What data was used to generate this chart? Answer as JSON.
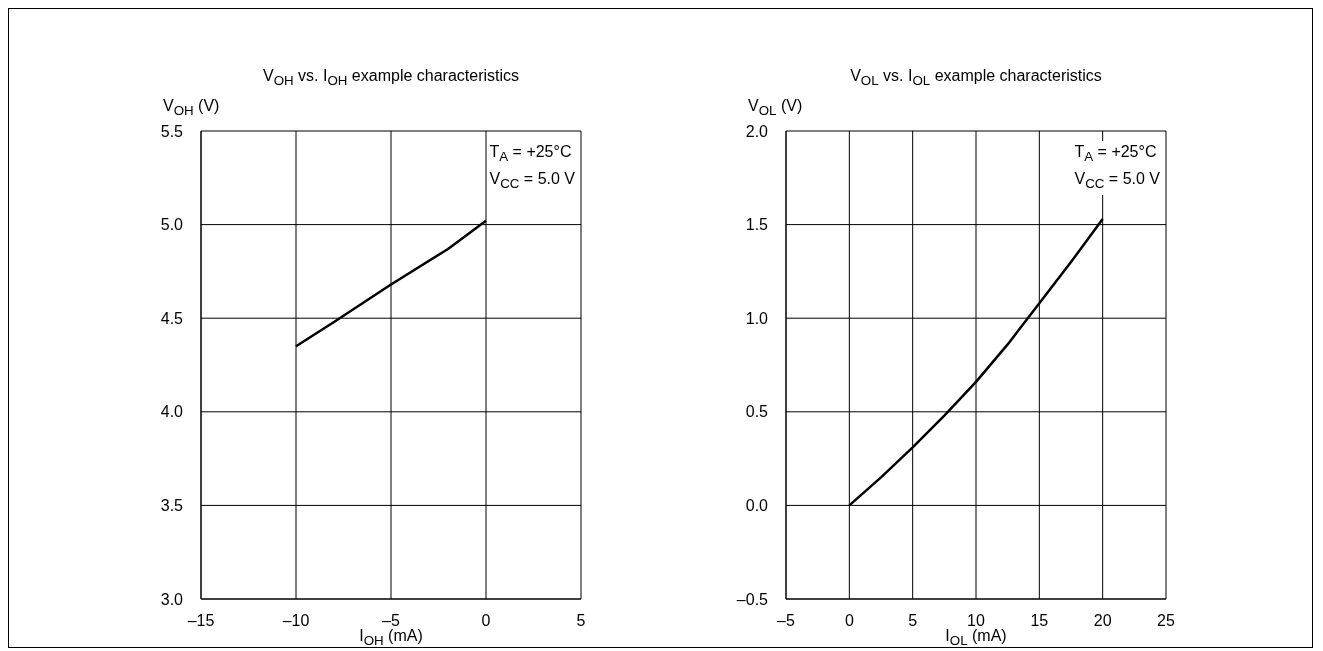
{
  "chart_data": [
    {
      "type": "line",
      "title": "V$_{OH}$ vs. I$_{OH}$ example characteristics",
      "xlabel": "I$_{OH}$ (mA)",
      "ylabel": "V$_{OH}$ (V)",
      "x": [
        -10,
        -8,
        -5,
        -2,
        0
      ],
      "series": [
        {
          "color": "#000000",
          "values": [
            4.35,
            4.48,
            4.68,
            4.87,
            5.02
          ]
        }
      ],
      "xlim": [
        -15,
        5
      ],
      "xticks": [
        {
          "value": -15,
          "label": "–15"
        },
        {
          "value": -10,
          "label": "–10"
        },
        {
          "value": -5,
          "label": "–5"
        },
        0,
        5
      ],
      "ylim": [
        3,
        5.5
      ],
      "yticks": [
        {
          "value": 3,
          "label": "3.0"
        },
        {
          "value": 3.5,
          "label": "3.5"
        },
        {
          "value": 4,
          "label": "4.0"
        },
        {
          "value": 4.5,
          "label": "4.5"
        },
        {
          "value": 5,
          "label": "5.0"
        },
        {
          "value": 5.5,
          "label": "5.5"
        }
      ],
      "grid": true,
      "annotations": [
        "T$_{A}$ = +25°C",
        "V$_{CC}$ = 5.0 V"
      ]
    },
    {
      "type": "line",
      "title": "V$_{OL}$ vs. I$_{OL}$ example characteristics",
      "xlabel": "I$_{OL}$ (mA)",
      "ylabel": "V$_{OL}$ (V)",
      "x": [
        0,
        2.5,
        5,
        7.5,
        10,
        12.5,
        15,
        17.5,
        20
      ],
      "series": [
        {
          "color": "#000000",
          "values": [
            0,
            0.15,
            0.31,
            0.48,
            0.66,
            0.86,
            1.08,
            1.3,
            1.53
          ]
        }
      ],
      "xlim": [
        -5,
        25
      ],
      "xticks": [
        {
          "value": -5,
          "label": "–5"
        },
        0,
        5,
        10,
        15,
        20,
        25
      ],
      "ylim": [
        -0.5,
        2
      ],
      "yticks": [
        {
          "value": -0.5,
          "label": "–0.5"
        },
        {
          "value": 0,
          "label": "0.0"
        },
        {
          "value": 0.5,
          "label": "0.5"
        },
        {
          "value": 1,
          "label": "1.0"
        },
        {
          "value": 1.5,
          "label": "1.5"
        },
        {
          "value": 2,
          "label": "2.0"
        }
      ],
      "grid": true,
      "annotations": [
        "T$_{A}$ = +25°C",
        "V$_{CC}$ = 5.0 V"
      ]
    }
  ]
}
